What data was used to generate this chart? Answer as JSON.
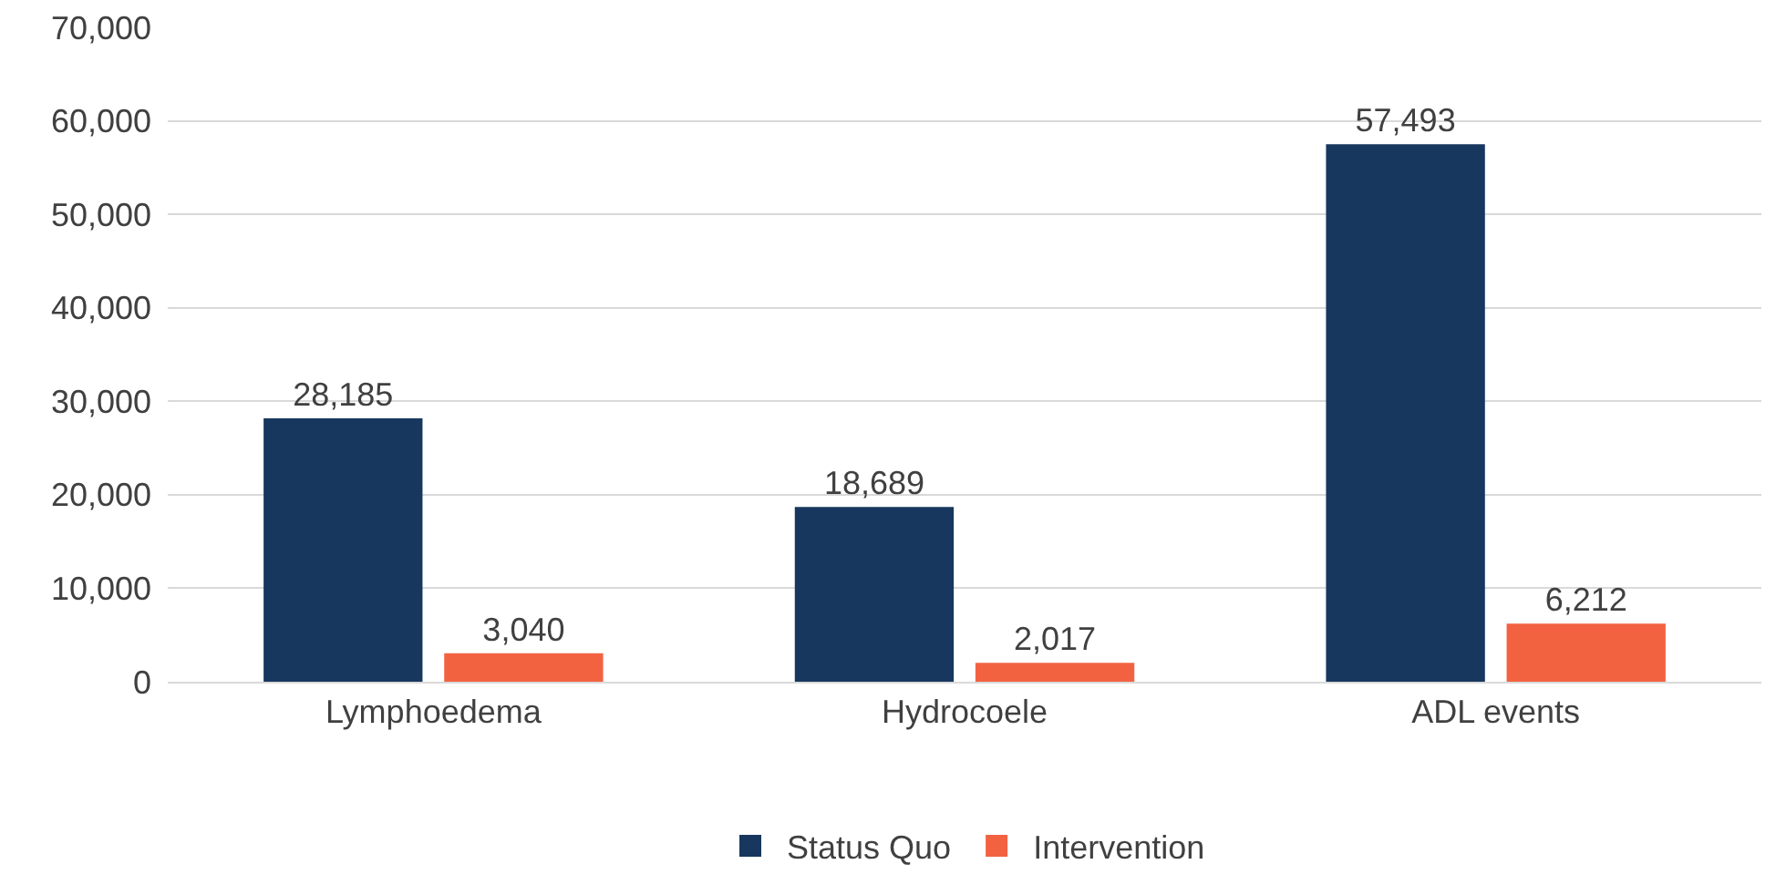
{
  "chart_data": {
    "type": "bar",
    "categories": [
      "Lymphoedema",
      "Hydrocoele",
      "ADL events"
    ],
    "series": [
      {
        "name": "Status Quo",
        "color": "#17375e",
        "values": [
          28185,
          18689,
          57493
        ],
        "value_labels": [
          "28,185",
          "18,689",
          "57,493"
        ]
      },
      {
        "name": "Intervention",
        "color": "#f26241",
        "values": [
          3040,
          2017,
          6212
        ],
        "value_labels": [
          "3,040",
          "2,017",
          "6,212"
        ]
      }
    ],
    "ylim": [
      0,
      70000
    ],
    "yticks": [
      {
        "value": 0,
        "label": "0"
      },
      {
        "value": 10000,
        "label": "10,000"
      },
      {
        "value": 20000,
        "label": "20,000"
      },
      {
        "value": 30000,
        "label": "30,000"
      },
      {
        "value": 40000,
        "label": "40,000"
      },
      {
        "value": 50000,
        "label": "50,000"
      },
      {
        "value": 60000,
        "label": "60,000"
      },
      {
        "value": 70000,
        "label": "70,000"
      }
    ],
    "grid": "y",
    "legend": "bottom"
  }
}
